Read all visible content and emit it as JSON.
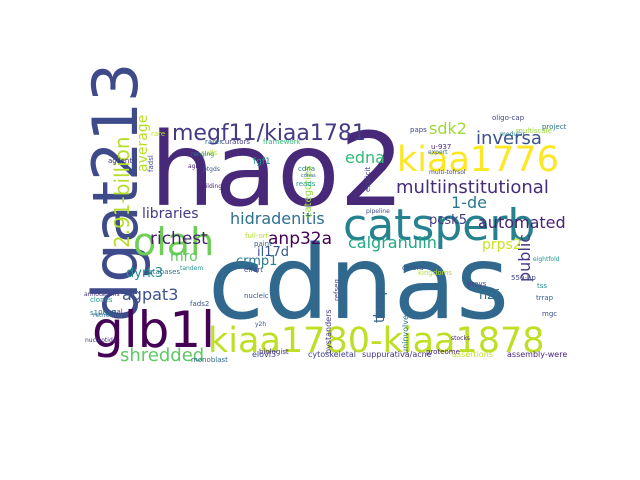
{
  "word_cloud": {
    "background": "#ffffff",
    "palette": "viridis",
    "words": [
      {
        "text": "hao2",
        "color": "#482878",
        "rotate": false
      },
      {
        "text": "cdnas",
        "color": "#31688e",
        "rotate": false
      },
      {
        "text": "dgat213",
        "color": "#3e4a89",
        "rotate": true
      },
      {
        "text": "glb1l",
        "color": "#440154",
        "rotate": false
      },
      {
        "text": "kiaa1780-kiaa1878",
        "color": "#bddf26",
        "rotate": false
      },
      {
        "text": "catsperb",
        "color": "#26828e",
        "rotate": false
      },
      {
        "text": "kiaa1776",
        "color": "#fde725",
        "rotate": false
      },
      {
        "text": "olah",
        "color": "#6ece58",
        "rotate": false
      },
      {
        "text": "megf11/kiaa1781",
        "color": "#443a83",
        "rotate": false
      },
      {
        "text": "2.91-billion",
        "color": "#b5de2b",
        "rotate": true
      },
      {
        "text": "multiinstitutional",
        "color": "#472c7a",
        "rotate": false
      },
      {
        "text": "hidradenitis",
        "color": "#2d708e",
        "rotate": false
      },
      {
        "text": "inversa",
        "color": "#3b528b",
        "rotate": false
      },
      {
        "text": "edna",
        "color": "#35b779",
        "rotate": false
      },
      {
        "text": "sdk2",
        "color": "#a0da39",
        "rotate": false
      },
      {
        "text": "richest",
        "color": "#481f70",
        "rotate": false
      },
      {
        "text": "libraries",
        "color": "#443983",
        "rotate": false
      },
      {
        "text": "shredded",
        "color": "#5ec962",
        "rotate": false
      },
      {
        "text": "agpat3",
        "color": "#3b528b",
        "rotate": false
      },
      {
        "text": "anp32a",
        "color": "#440154",
        "rotate": false
      },
      {
        "text": "calgranulin",
        "color": "#22a884",
        "rotate": false
      },
      {
        "text": "1-de",
        "color": "#2a788e",
        "rotate": false
      },
      {
        "text": "automated",
        "color": "#482475",
        "rotate": false
      },
      {
        "text": "public",
        "color": "#453781",
        "rotate": true
      },
      {
        "text": "prps2",
        "color": "#cae11f",
        "rotate": false
      },
      {
        "text": "mro",
        "color": "#5ec962",
        "rotate": false
      },
      {
        "text": "average",
        "color": "#b8de29",
        "rotate": true
      },
      {
        "text": "crmp1",
        "color": "#287d8e",
        "rotate": false
      },
      {
        "text": "dyrk3",
        "color": "#21918c",
        "rotate": false
      },
      {
        "text": "pcsk5",
        "color": "#443983",
        "rotate": false
      },
      {
        "text": "il17d",
        "color": "#39568c",
        "rotate": false
      },
      {
        "text": "thrsp",
        "color": "#33638d",
        "rotate": true
      },
      {
        "text": "hzf",
        "color": "#2c728e",
        "rotate": false
      },
      {
        "text": "categories",
        "color": "#95d840",
        "rotate": true
      },
      {
        "text": "fgf1",
        "color": "#21918c",
        "rotate": false
      },
      {
        "text": "u-937",
        "color": "#482878",
        "rotate": false
      },
      {
        "text": "paps",
        "color": "#3e4a89",
        "rotate": false
      },
      {
        "text": "sulfs",
        "color": "#b5de2b",
        "rotate": false
      },
      {
        "text": "curators",
        "color": "#453781",
        "rotate": false
      },
      {
        "text": "rarer",
        "color": "#31688e",
        "rotate": false
      },
      {
        "text": "framework",
        "color": "#35b779",
        "rotate": false
      },
      {
        "text": "agilent",
        "color": "#46327e",
        "rotate": false
      },
      {
        "text": "fadsl",
        "color": "#3f4788",
        "rotate": true
      },
      {
        "text": "building",
        "color": "#482475",
        "rotate": false
      },
      {
        "text": "cdna",
        "color": "#26828e",
        "rotate": false
      },
      {
        "text": "reads",
        "color": "#1f9e89",
        "rotate": false
      },
      {
        "text": "explicit",
        "color": "#414487",
        "rotate": true
      },
      {
        "text": "full-orf",
        "color": "#b4de2c",
        "rotate": false
      },
      {
        "text": "databases",
        "color": "#2c728e",
        "rotate": false
      },
      {
        "text": "clones",
        "color": "#1f9a8a",
        "rotate": false
      },
      {
        "text": "s100a9",
        "color": "#2d708e",
        "rotate": false
      },
      {
        "text": "paint",
        "color": "#31688e",
        "rotate": false
      },
      {
        "text": "effort",
        "color": "#3e4a89",
        "rotate": false
      },
      {
        "text": "nucleic",
        "color": "#39568c",
        "rotate": false
      },
      {
        "text": "biologist",
        "color": "#472d7b",
        "rotate": false
      },
      {
        "text": "proteome",
        "color": "#482173",
        "rotate": false
      },
      {
        "text": "celera",
        "color": "#3b528b",
        "rotate": false
      },
      {
        "text": "kingdoms",
        "color": "#b5de2b",
        "rotate": false
      },
      {
        "text": "bystanders",
        "color": "#443983",
        "rotate": true
      },
      {
        "text": "uninvolved",
        "color": "#2a788e",
        "rotate": true
      },
      {
        "text": "refseq",
        "color": "#414487",
        "rotate": true
      },
      {
        "text": "preys",
        "color": "#3f4788",
        "rotate": false
      },
      {
        "text": "550-bp",
        "color": "#404688",
        "rotate": false
      },
      {
        "text": "tss",
        "color": "#21918c",
        "rotate": false
      },
      {
        "text": "trrap",
        "color": "#33638d",
        "rotate": false
      },
      {
        "text": "mgc",
        "color": "#3b528b",
        "rotate": false
      },
      {
        "text": "elovl3",
        "color": "#3e4a89",
        "rotate": false
      },
      {
        "text": "cytoskeletal",
        "color": "#424086",
        "rotate": false
      },
      {
        "text": "suppurativa/acne",
        "color": "#46327e",
        "rotate": false
      },
      {
        "text": "assertions",
        "color": "#c2df23",
        "rotate": false
      },
      {
        "text": "assembly-were",
        "color": "#482576",
        "rotate": false
      },
      {
        "text": "monoblast",
        "color": "#31688e",
        "rotate": false
      },
      {
        "text": "fads2",
        "color": "#3b528b",
        "rotate": false
      },
      {
        "text": "gal",
        "color": "#443983",
        "rotate": false
      },
      {
        "text": "oligo-cap",
        "color": "#414487",
        "rotate": false
      },
      {
        "text": "multiscale",
        "color": "#9bd93c",
        "rotate": false
      },
      {
        "text": "project",
        "color": "#2c728e",
        "rotate": false
      },
      {
        "text": "rare",
        "color": "#b8de29",
        "rotate": false
      },
      {
        "text": "agree",
        "color": "#482878",
        "rotate": false
      },
      {
        "text": "ptgds",
        "color": "#39568c",
        "rotate": false
      },
      {
        "text": "y2h",
        "color": "#3b528b",
        "rotate": false
      },
      {
        "text": "ranging",
        "color": "#2a788e",
        "rotate": false
      },
      {
        "text": "tandem",
        "color": "#21918c",
        "rotate": false
      },
      {
        "text": "pipeline",
        "color": "#3e4a89",
        "rotate": false
      },
      {
        "text": "expert",
        "color": "#31688e",
        "rotate": false
      },
      {
        "text": "annotations",
        "color": "#443983",
        "rotate": false
      },
      {
        "text": "retrieving",
        "color": "#2d708e",
        "rotate": false
      },
      {
        "text": "eightfold",
        "color": "#1f9a8a",
        "rotate": false
      },
      {
        "text": "nucleotide",
        "color": "#46327e",
        "rotate": false
      },
      {
        "text": "modular",
        "color": "#2a788e",
        "rotate": false
      },
      {
        "text": "cdnas",
        "color": "#31688e",
        "rotate": false
      },
      {
        "text": "stocks",
        "color": "#482173",
        "rotate": false
      },
      {
        "text": "multi-tofrsol",
        "color": "#3e4a89",
        "rotate": false
      }
    ]
  }
}
